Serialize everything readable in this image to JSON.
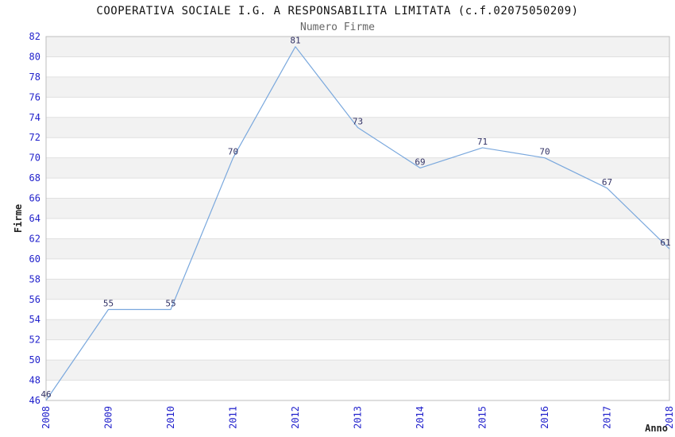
{
  "header": {
    "title": "COOPERATIVA SOCIALE I.G. A RESPONSABILITA LIMITATA (c.f.02075050209)",
    "subtitle": "Numero Firme"
  },
  "chart_data": {
    "type": "line",
    "title": "COOPERATIVA SOCIALE I.G. A RESPONSABILITA LIMITATA (c.f.02075050209)",
    "subtitle": "Numero Firme",
    "xlabel": "Anno",
    "ylabel": "Firme",
    "categories": [
      "2008",
      "2009",
      "2010",
      "2011",
      "2012",
      "2013",
      "2014",
      "2015",
      "2016",
      "2017",
      "2018"
    ],
    "series": [
      {
        "name": "Numero Firme",
        "values": [
          46,
          55,
          55,
          70,
          81,
          73,
          69,
          71,
          70,
          67,
          61
        ]
      }
    ],
    "point_labels": [
      "46",
      "55",
      "55",
      "70",
      "81",
      "73",
      "69",
      "71",
      "70",
      "67",
      "61"
    ],
    "ylim": [
      46,
      82
    ],
    "ytick_step": 2,
    "yticks": [
      "82",
      "80",
      "78",
      "76",
      "74",
      "72",
      "70",
      "68",
      "66",
      "64",
      "62",
      "60",
      "58",
      "56",
      "54",
      "52",
      "50",
      "48",
      "46"
    ],
    "grid": "horizontal-alternating-bands",
    "legend_position": "none"
  },
  "colors": {
    "line": "#7aa8dd",
    "tick_label": "#2222cc",
    "point_label": "#333366",
    "band_gray": "#f2f2f2",
    "band_white": "#ffffff",
    "gridline": "#e0e0e0",
    "plot_border": "#bdbdbd",
    "axis_title": "#222222",
    "title": "#111111",
    "subtitle": "#666666"
  }
}
